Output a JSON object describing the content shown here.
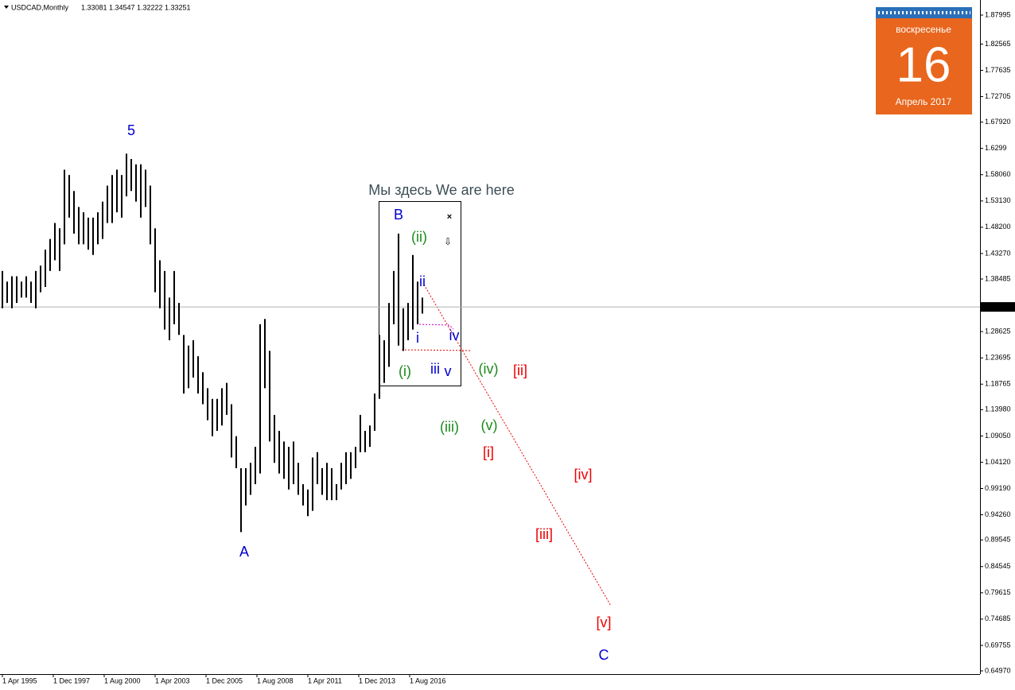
{
  "chart_data": {
    "type": "range-bar",
    "symbol": "USDCAD,Monthly",
    "open": 1.33081,
    "high": 1.34547,
    "low": 1.32222,
    "close": 1.33251,
    "last_price": 1.33251,
    "color": "#000000",
    "xlim": [
      1995.125,
      2046.458
    ],
    "ylim": [
      0.6437,
      1.9083
    ],
    "xticks": [
      {
        "value": 1995.25,
        "label": "1 Apr 1995"
      },
      {
        "value": 1997.917,
        "label": "1 Dec 1997"
      },
      {
        "value": 2000.583,
        "label": "1 Aug 2000"
      },
      {
        "value": 2003.25,
        "label": "1 Apr 2003"
      },
      {
        "value": 2005.917,
        "label": "1 Dec 2005"
      },
      {
        "value": 2008.583,
        "label": "1 Aug 2008"
      },
      {
        "value": 2011.25,
        "label": "1 Apr 2011"
      },
      {
        "value": 2013.917,
        "label": "1 Dec 2013"
      },
      {
        "value": 2016.583,
        "label": "1 Aug 2016"
      }
    ],
    "yticks": [
      1.87995,
      1.82565,
      1.77635,
      1.72705,
      {
        "value": 1.6792,
        "label": "1.67920"
      },
      1.6299,
      {
        "value": 1.5806,
        "label": "1.58060"
      },
      {
        "value": 1.5313,
        "label": "1.53130"
      },
      {
        "value": 1.482,
        "label": "1.48200"
      },
      {
        "value": 1.4327,
        "label": "1.43270"
      },
      1.38485,
      1.28625,
      1.23695,
      1.18765,
      {
        "value": 1.1398,
        "label": "1.13980"
      },
      {
        "value": 1.0905,
        "label": "1.09050"
      },
      {
        "value": 1.0412,
        "label": "1.04120"
      },
      {
        "value": 0.9919,
        "label": "0.99190"
      },
      {
        "value": 0.9426,
        "label": "0.94260"
      },
      0.89545,
      0.84545,
      0.79615,
      0.74685,
      0.69755,
      {
        "value": 0.6497,
        "label": "0.64970"
      }
    ],
    "x": [
      1995.25,
      1995.5,
      1995.75,
      1996,
      1996.25,
      1996.5,
      1996.75,
      1997,
      1997.25,
      1997.5,
      1997.75,
      1998,
      1998.25,
      1998.5,
      1998.75,
      1999,
      1999.25,
      1999.5,
      1999.75,
      2000,
      2000.25,
      2000.5,
      2000.75,
      2001,
      2001.25,
      2001.5,
      2001.75,
      2002,
      2002.25,
      2002.5,
      2002.75,
      2003,
      2003.25,
      2003.5,
      2003.75,
      2004,
      2004.25,
      2004.5,
      2004.75,
      2005,
      2005.25,
      2005.5,
      2005.75,
      2006,
      2006.25,
      2006.5,
      2006.75,
      2007,
      2007.25,
      2007.5,
      2007.75,
      2008,
      2008.25,
      2008.5,
      2008.75,
      2009,
      2009.25,
      2009.5,
      2009.75,
      2010,
      2010.25,
      2010.5,
      2010.75,
      2011,
      2011.25,
      2011.5,
      2011.75,
      2012,
      2012.25,
      2012.5,
      2012.75,
      2013,
      2013.25,
      2013.5,
      2013.75,
      2014,
      2014.25,
      2014.5,
      2014.75,
      2015,
      2015.25,
      2015.5,
      2015.75,
      2016,
      2016.25,
      2016.5,
      2016.75,
      2017,
      2017.25
    ],
    "series": [
      {
        "name": "high",
        "values": [
          1.4,
          1.38,
          1.39,
          1.39,
          1.38,
          1.39,
          1.38,
          1.4,
          1.41,
          1.44,
          1.46,
          1.49,
          1.48,
          1.59,
          1.58,
          1.55,
          1.52,
          1.51,
          1.5,
          1.5,
          1.51,
          1.53,
          1.56,
          1.58,
          1.59,
          1.58,
          1.62,
          1.61,
          1.6,
          1.6,
          1.59,
          1.56,
          1.48,
          1.42,
          1.4,
          1.35,
          1.4,
          1.34,
          1.28,
          1.26,
          1.27,
          1.24,
          1.21,
          1.18,
          1.16,
          1.16,
          1.18,
          1.19,
          1.15,
          1.09,
          1.03,
          1.03,
          1.04,
          1.07,
          1.3,
          1.31,
          1.25,
          1.13,
          1.1,
          1.08,
          1.07,
          1.08,
          1.04,
          1.0,
          0.99,
          1.05,
          1.06,
          1.03,
          1.04,
          1.03,
          1.0,
          1.04,
          1.06,
          1.06,
          1.07,
          1.13,
          1.1,
          1.11,
          1.17,
          1.28,
          1.27,
          1.34,
          1.4,
          1.47,
          1.33,
          1.34,
          1.43,
          1.38,
          1.35
        ]
      },
      {
        "name": "low",
        "values": [
          1.33,
          1.34,
          1.33,
          1.34,
          1.35,
          1.35,
          1.34,
          1.33,
          1.36,
          1.37,
          1.4,
          1.42,
          1.4,
          1.45,
          1.5,
          1.47,
          1.45,
          1.45,
          1.44,
          1.43,
          1.45,
          1.46,
          1.49,
          1.49,
          1.51,
          1.5,
          1.54,
          1.55,
          1.53,
          1.5,
          1.52,
          1.45,
          1.36,
          1.33,
          1.29,
          1.27,
          1.3,
          1.28,
          1.17,
          1.18,
          1.2,
          1.17,
          1.15,
          1.12,
          1.09,
          1.1,
          1.11,
          1.13,
          1.05,
          1.03,
          0.91,
          0.96,
          0.98,
          1.0,
          1.02,
          1.18,
          1.08,
          1.04,
          1.02,
          1.01,
          0.99,
          1.0,
          0.98,
          0.96,
          0.94,
          0.95,
          1.0,
          0.98,
          0.97,
          0.97,
          0.97,
          0.99,
          1.0,
          1.01,
          1.03,
          1.06,
          1.06,
          1.07,
          1.1,
          1.16,
          1.19,
          1.22,
          1.3,
          1.26,
          1.25,
          1.27,
          1.29,
          1.3,
          1.32
        ]
      }
    ],
    "annotations": [
      "5",
      "A",
      "B",
      "C",
      "(ii)",
      "ii",
      "i",
      "iv",
      "(i)",
      "iii",
      "v",
      "(iv)",
      "[ii]",
      "(iii)",
      "(v)",
      "[i]",
      "[iv]",
      "[iii]",
      "[v]",
      "Мы здесь We are here"
    ]
  },
  "calendar": {
    "weekday": "воскресенье",
    "day": "16",
    "month_year": "Апрель 2017"
  }
}
